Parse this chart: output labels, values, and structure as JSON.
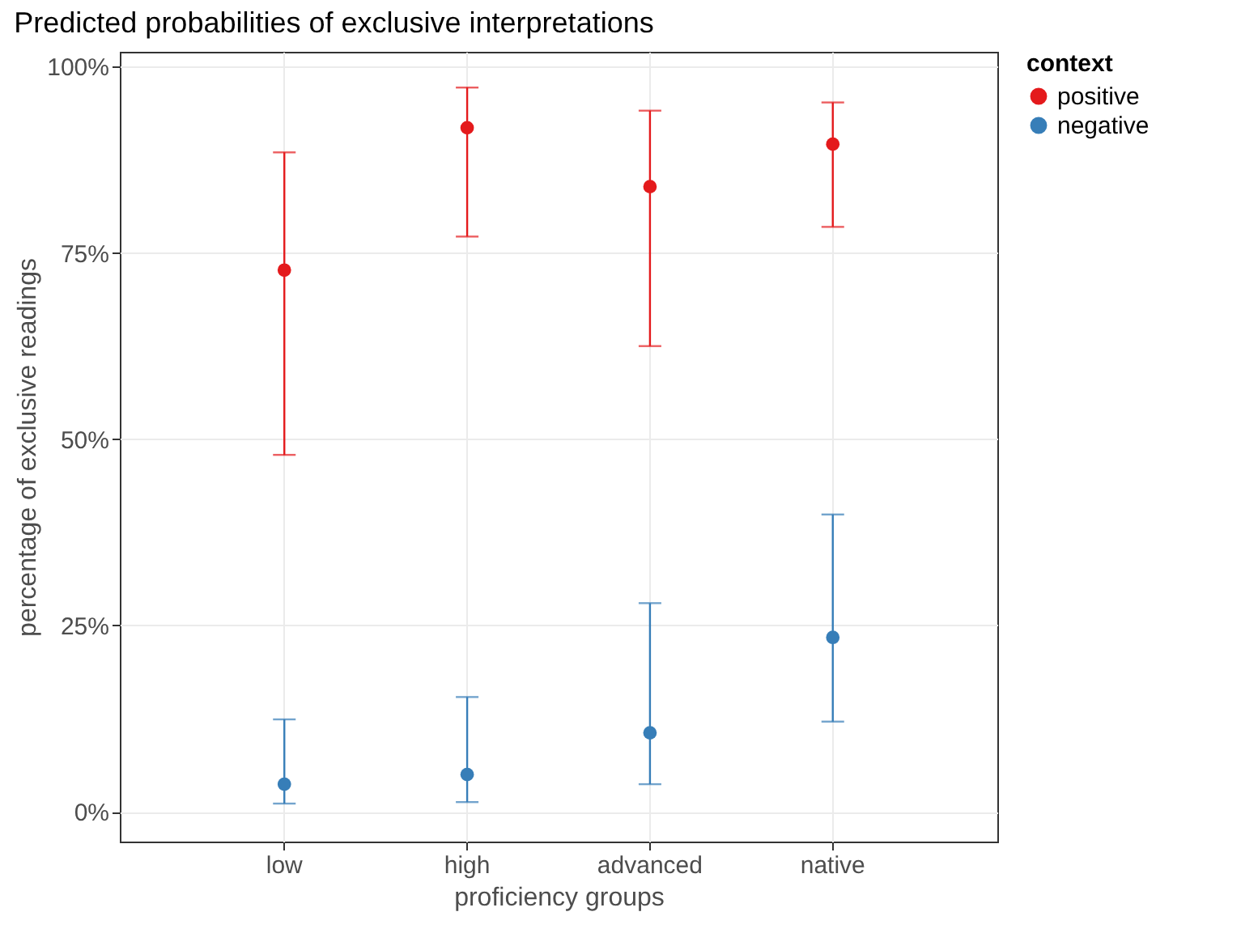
{
  "chart_data": {
    "type": "scatter",
    "title": "Predicted probabilities of exclusive interpretations",
    "xlabel": "proficiency groups",
    "ylabel": "percentage of exclusive readings",
    "legend_title": "context",
    "legend": "right",
    "grid": true,
    "marker": "circle",
    "categories": [
      "low",
      "high",
      "advanced",
      "native"
    ],
    "ylim": [
      -4,
      102
    ],
    "yticks": [
      {
        "value": 0,
        "label": "0%"
      },
      {
        "value": 25,
        "label": "25%"
      },
      {
        "value": 50,
        "label": "50%"
      },
      {
        "value": 75,
        "label": "75%"
      },
      {
        "value": 100,
        "label": "100%"
      }
    ],
    "series": [
      {
        "name": "positive",
        "color": "#e41a1c",
        "values": [
          72.7,
          91.8,
          83.9,
          89.6
        ],
        "errors": [
          [
            47.9,
            88.5
          ],
          [
            77.2,
            97.2
          ],
          [
            62.5,
            94.1
          ],
          [
            78.5,
            95.2
          ]
        ]
      },
      {
        "name": "negative",
        "color": "#377eb8",
        "values": [
          3.7,
          5.0,
          10.6,
          23.4
        ],
        "errors": [
          [
            1.1,
            12.4
          ],
          [
            1.3,
            15.4
          ],
          [
            3.7,
            28.0
          ],
          [
            12.1,
            39.9
          ]
        ]
      }
    ]
  }
}
